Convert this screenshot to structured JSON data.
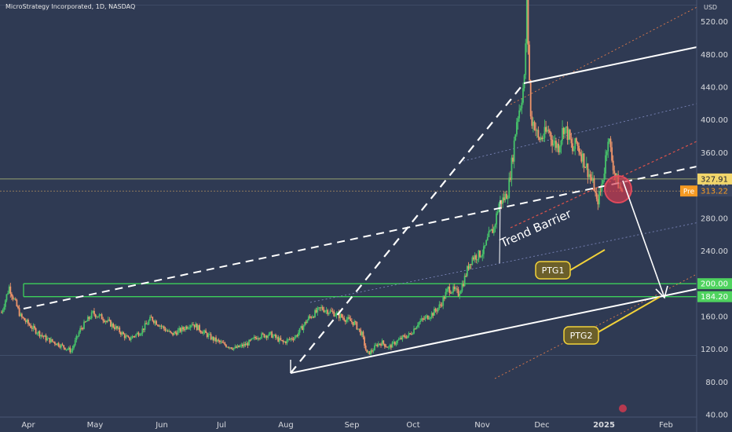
{
  "header": {
    "symbol_title": "MicroStrategy Incorporated, 1D, NASDAQ",
    "currency": "USD"
  },
  "colors": {
    "background": "#2f3a53",
    "up_candle": "#46c36a",
    "down_candle": "#f0956a",
    "axis_text": "#d7d9de",
    "support_line": "#3cd05a",
    "last_price_badge": "#f2d66b",
    "pre_market_badge": "#f59a23",
    "ptg_label_bg": "#6b5f2a",
    "ptg_label_border": "#f2d23a",
    "circle_fill": "#d93a4f"
  },
  "chart_data": {
    "type": "candlestick",
    "title": "MicroStrategy Incorporated, 1D, NASDAQ",
    "ylabel": "USD",
    "ylim": [
      40,
      680
    ],
    "y_ticks": [
      40,
      80,
      120,
      160,
      200,
      240,
      280,
      320,
      360,
      400,
      440,
      480,
      520,
      560,
      600,
      640
    ],
    "x_ticks": [
      "Apr",
      "May",
      "Jun",
      "Jul",
      "Aug",
      "Sep",
      "Oct",
      "Nov",
      "Dec",
      "2025",
      "Feb"
    ],
    "grid": false,
    "price_labels": [
      {
        "value": 327.91,
        "text": "327.91",
        "kind": "last"
      },
      {
        "value": 313.22,
        "text": "313.22",
        "kind": "pre",
        "prefix": "Pre"
      },
      {
        "value": 200.0,
        "text": "200.00",
        "kind": "support"
      },
      {
        "value": 184.2,
        "text": "184.20",
        "kind": "support"
      }
    ],
    "horizontal_levels": [
      200.0,
      184.2
    ],
    "annotations": [
      {
        "text": "Trend Barrier",
        "kind": "label"
      },
      {
        "text": "PTG1",
        "kind": "target"
      },
      {
        "text": "PTG2",
        "kind": "target"
      }
    ],
    "candle_path": [
      [
        0,
        165
      ],
      [
        6,
        196
      ],
      [
        15,
        160
      ],
      [
        25,
        145
      ],
      [
        35,
        133
      ],
      [
        45,
        126
      ],
      [
        55,
        118
      ],
      [
        62,
        144
      ],
      [
        72,
        164
      ],
      [
        80,
        158
      ],
      [
        90,
        146
      ],
      [
        100,
        132
      ],
      [
        110,
        142
      ],
      [
        118,
        158
      ],
      [
        126,
        148
      ],
      [
        134,
        138
      ],
      [
        142,
        144
      ],
      [
        150,
        152
      ],
      [
        158,
        142
      ],
      [
        166,
        133
      ],
      [
        175,
        126
      ],
      [
        184,
        121
      ],
      [
        193,
        126
      ],
      [
        202,
        136
      ],
      [
        212,
        138
      ],
      [
        222,
        128
      ],
      [
        232,
        136
      ],
      [
        242,
        158
      ],
      [
        252,
        170
      ],
      [
        262,
        164
      ],
      [
        270,
        158
      ],
      [
        278,
        152
      ],
      [
        284,
        138
      ],
      [
        288,
        114
      ],
      [
        292,
        118
      ],
      [
        296,
        126
      ],
      [
        300,
        128
      ],
      [
        305,
        122
      ],
      [
        310,
        128
      ],
      [
        316,
        134
      ],
      [
        322,
        138
      ],
      [
        328,
        152
      ],
      [
        334,
        158
      ],
      [
        340,
        164
      ],
      [
        346,
        174
      ],
      [
        352,
        194
      ],
      [
        356,
        192
      ],
      [
        360,
        188
      ],
      [
        364,
        202
      ],
      [
        368,
        222
      ],
      [
        371,
        232
      ],
      [
        376,
        235
      ],
      [
        380,
        240
      ],
      [
        384,
        258
      ],
      [
        388,
        268
      ],
      [
        392,
        298
      ],
      [
        396,
        304
      ],
      [
        399,
        312
      ],
      [
        403,
        358
      ],
      [
        406,
        400
      ],
      [
        409,
        420
      ],
      [
        412,
        448
      ],
      [
        414,
        542
      ],
      [
        417,
        402
      ],
      [
        420,
        395
      ],
      [
        423,
        376
      ],
      [
        427,
        380
      ],
      [
        431,
        388
      ],
      [
        435,
        372
      ],
      [
        439,
        368
      ],
      [
        443,
        392
      ],
      [
        447,
        380
      ],
      [
        450,
        362
      ],
      [
        453,
        372
      ],
      [
        457,
        358
      ],
      [
        461,
        342
      ],
      [
        464,
        330
      ],
      [
        467,
        318
      ],
      [
        469,
        298
      ],
      [
        472,
        312
      ],
      [
        475,
        340
      ],
      [
        478,
        382
      ],
      [
        481,
        352
      ],
      [
        484,
        330
      ],
      [
        487,
        318
      ],
      [
        489,
        313
      ]
    ]
  }
}
